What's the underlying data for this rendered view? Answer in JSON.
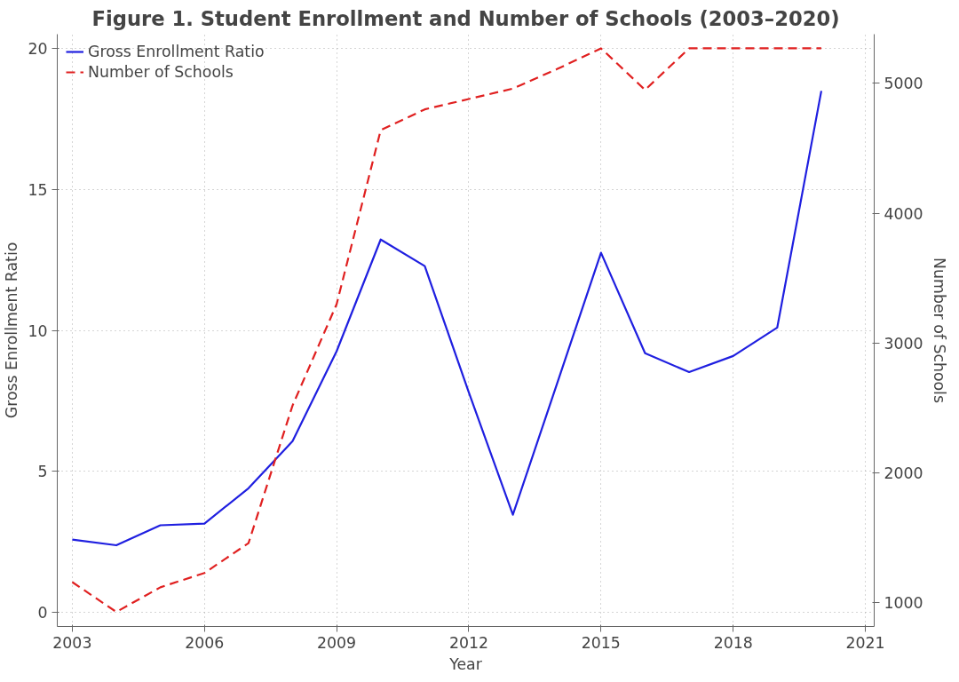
{
  "chart_data": {
    "type": "line",
    "title": "Figure 1. Student Enrollment and Number of Schools (2003–2020)",
    "xlabel": "Year",
    "ylabel": "Gross Enrollment Ratio",
    "y2label": "Number of Schools",
    "x": [
      2003,
      2004,
      2005,
      2006,
      2007,
      2008,
      2009,
      2010,
      2011,
      2012,
      2013,
      2014,
      2015,
      2016,
      2017,
      2018,
      2019,
      2020
    ],
    "series": [
      {
        "name": "Gross Enrollment Ratio",
        "color": "#1f1fe0",
        "line_style": "solid",
        "values": [
          2.58,
          2.38,
          3.09,
          3.15,
          4.4,
          6.07,
          9.26,
          13.22,
          12.28,
          7.8,
          3.46,
          8.1,
          12.75,
          9.19,
          8.52,
          9.09,
          10.1,
          18.49
        ]
      },
      {
        "name": "Number of Schools",
        "color": "#e02020",
        "line_style": "dashed",
        "axis": "y2",
        "values": [
          1160,
          930,
          1120,
          1230,
          1460,
          2520,
          3300,
          4640,
          4800,
          4880,
          4960,
          5110,
          5270,
          4950,
          5270,
          5270,
          5270,
          5270
        ]
      }
    ],
    "xlim": [
      2002.66,
      2021.2
    ],
    "xticks": [
      2003,
      2006,
      2009,
      2012,
      2015,
      2018,
      2021
    ],
    "ylim": [
      -0.5,
      20.5
    ],
    "yticks": [
      0,
      5,
      10,
      15,
      20
    ],
    "y2lim": [
      818,
      5379
    ],
    "y2ticks": [
      1000,
      2000,
      3000,
      4000,
      5000
    ],
    "grid": true,
    "legend": "top left"
  }
}
